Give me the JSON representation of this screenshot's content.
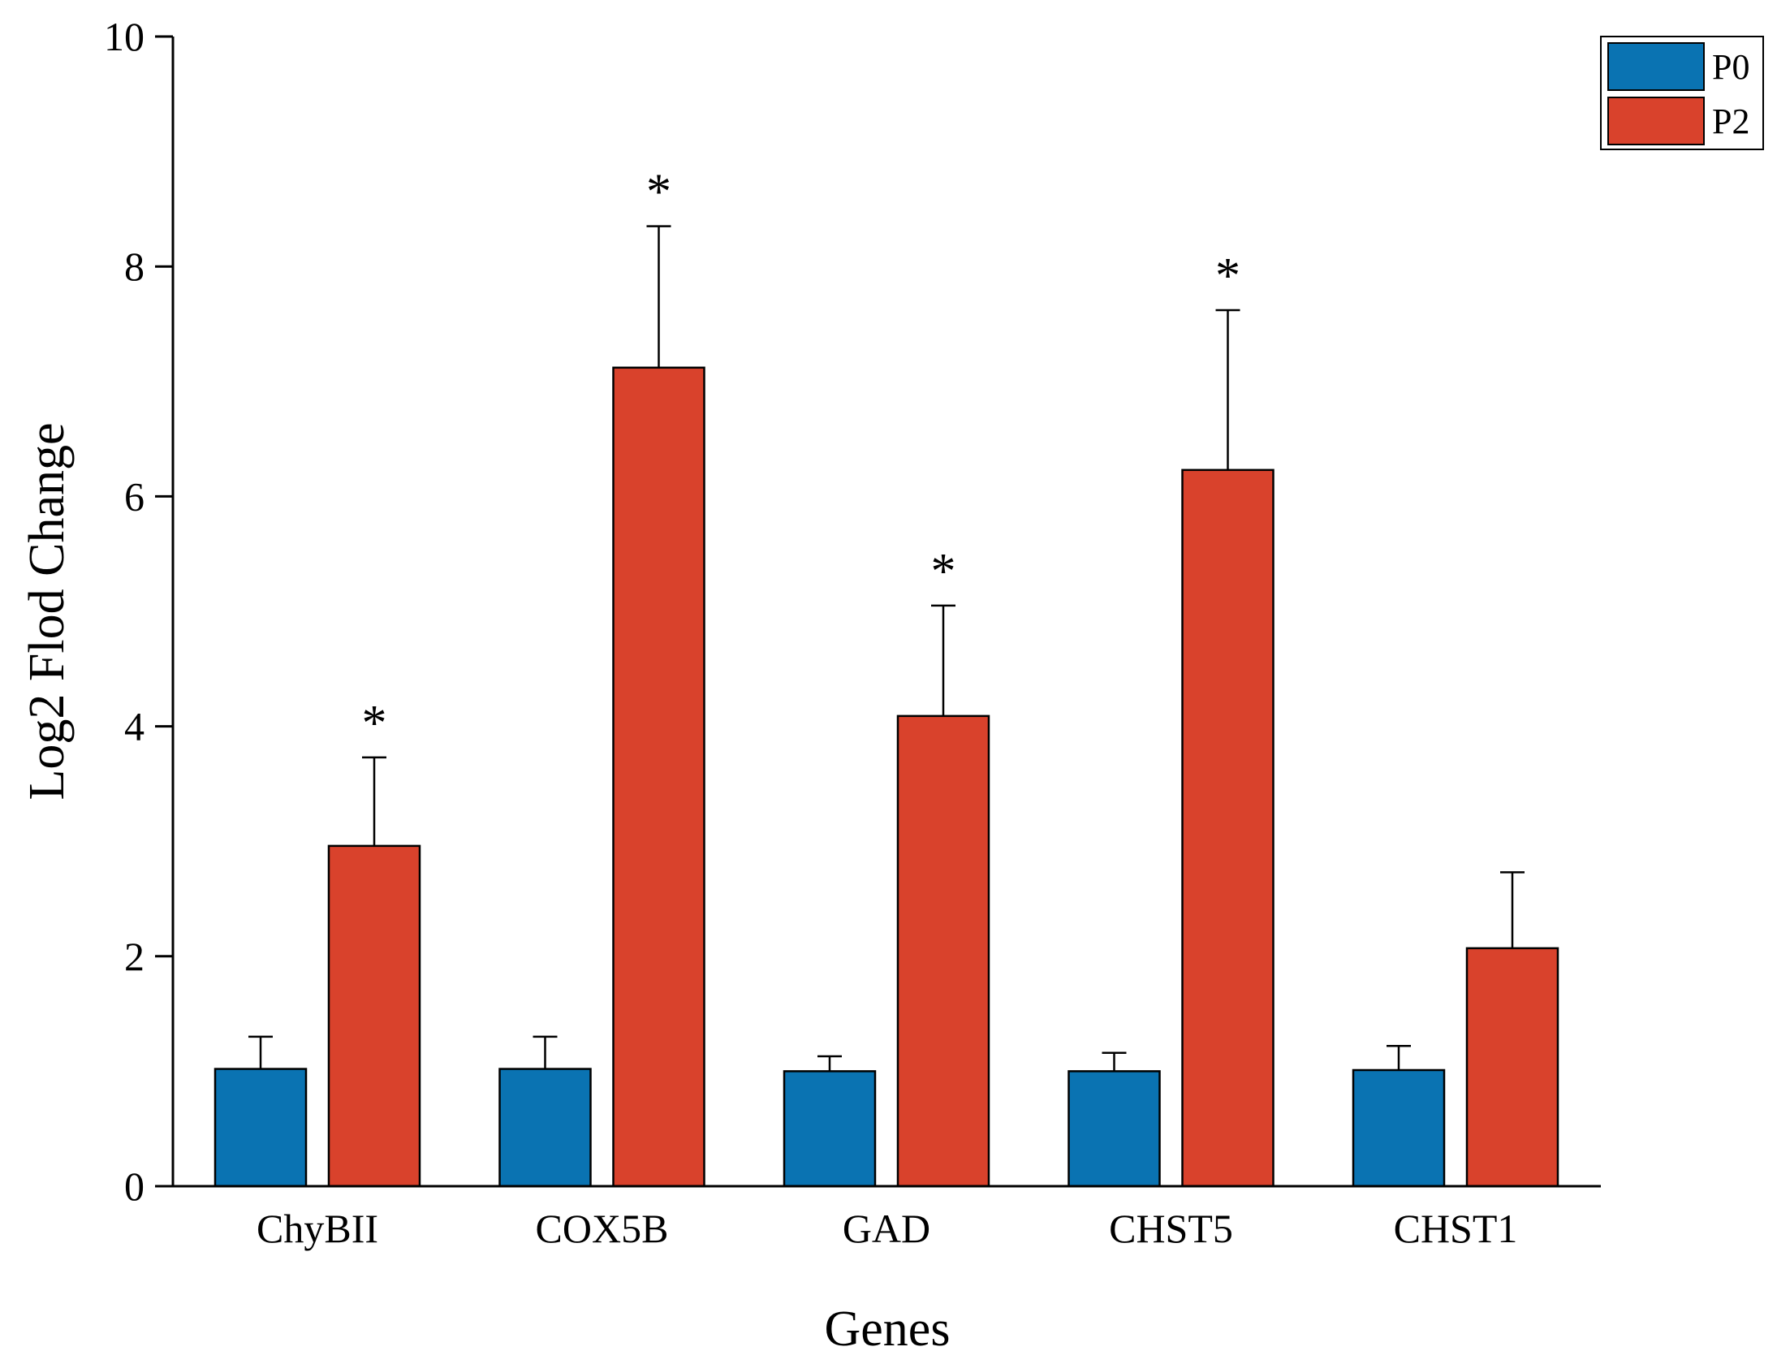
{
  "chart_data": {
    "type": "bar",
    "title": "",
    "xlabel": "Genes",
    "ylabel": "Log2 Flod Change",
    "ylim": [
      0,
      10
    ],
    "yticks": [
      0,
      2,
      4,
      6,
      8,
      10
    ],
    "ytick_labels": [
      "0",
      "2",
      "4",
      "6",
      "8",
      "10"
    ],
    "categories": [
      "ChyBII",
      "COX5B",
      "GAD",
      "CHST5",
      "CHST1"
    ],
    "series": [
      {
        "name": "P0",
        "color": "#0a73b2",
        "values": [
          1.02,
          1.02,
          1.0,
          1.0,
          1.01
        ],
        "errors": [
          0.28,
          0.28,
          0.13,
          0.16,
          0.21
        ],
        "significance": [
          "",
          "",
          "",
          "",
          ""
        ]
      },
      {
        "name": "P2",
        "color": "#d9422c",
        "values": [
          2.96,
          7.12,
          4.09,
          6.23,
          2.07
        ],
        "errors": [
          0.77,
          1.23,
          0.96,
          1.39,
          0.66
        ],
        "significance": [
          "*",
          "*",
          "*",
          "*",
          ""
        ]
      }
    ],
    "legend": {
      "position": "top-right",
      "entries": [
        "P0",
        "P2"
      ]
    },
    "grid": false
  }
}
